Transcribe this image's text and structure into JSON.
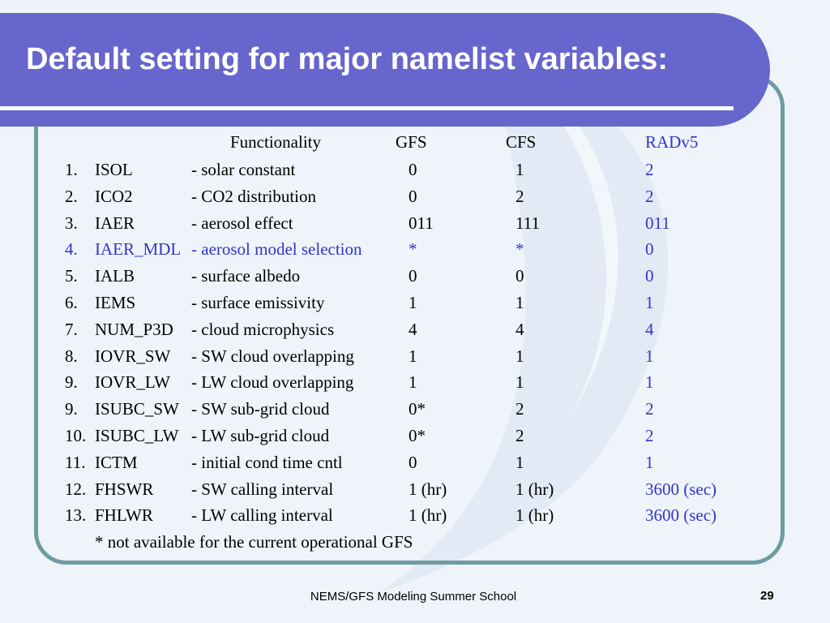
{
  "slide": {
    "title": "Default setting for major namelist variables:",
    "footer": "NEMS/GFS Modeling Summer School",
    "page_number": "29"
  },
  "colors": {
    "title_bg": "#6666cc",
    "frame": "#6e9ca0",
    "highlight": "#3333cc"
  },
  "table": {
    "headers": {
      "functionality": "Functionality",
      "gfs": "GFS",
      "cfs": "CFS",
      "radv5": "RADv5"
    },
    "rows": [
      {
        "num": "1.",
        "var": "ISOL",
        "desc": "- solar constant",
        "gfs": "0",
        "cfs": "1",
        "rad": "2",
        "highlight": false
      },
      {
        "num": "2.",
        "var": "ICO2",
        "desc": "- CO2 distribution",
        "gfs": "0",
        "cfs": "2",
        "rad": "2",
        "highlight": false
      },
      {
        "num": "3.",
        "var": "IAER",
        "desc": "- aerosol effect",
        "gfs": "011",
        "cfs": "111",
        "rad": "011",
        "highlight": false
      },
      {
        "num": "4.",
        "var": "IAER_MDL",
        "desc": "- aerosol model selection",
        "gfs": "*",
        "cfs": "*",
        "rad": "0",
        "highlight": true
      },
      {
        "num": "5.",
        "var": "IALB",
        "desc": "- surface albedo",
        "gfs": "0",
        "cfs": "0",
        "rad": "0",
        "highlight": false
      },
      {
        "num": "6.",
        "var": "IEMS",
        "desc": "- surface emissivity",
        "gfs": "1",
        "cfs": "1",
        "rad": "1",
        "highlight": false
      },
      {
        "num": "7.",
        "var": "NUM_P3D",
        "desc": "- cloud microphysics",
        "gfs": "4",
        "cfs": "4",
        "rad": "4",
        "highlight": false
      },
      {
        "num": "8.",
        "var": "IOVR_SW",
        "desc": "- SW cloud overlapping",
        "gfs": "1",
        "cfs": "1",
        "rad": "1",
        "highlight": false
      },
      {
        "num": "9.",
        "var": "IOVR_LW",
        "desc": "- LW cloud overlapping",
        "gfs": "1",
        "cfs": "1",
        "rad": "1",
        "highlight": false
      },
      {
        "num": "9.",
        "var": "ISUBC_SW",
        "desc": "- SW sub-grid cloud",
        "gfs": "0*",
        "cfs": "2",
        "rad": "2",
        "highlight": false
      },
      {
        "num": "10.",
        "var": "ISUBC_LW",
        "desc": "- LW sub-grid cloud",
        "gfs": "0*",
        "cfs": "2",
        "rad": "2",
        "highlight": false
      },
      {
        "num": "11.",
        "var": "ICTM",
        "desc": "- initial cond time cntl",
        "gfs": "0",
        "cfs": "1",
        "rad": "1",
        "highlight": false
      },
      {
        "num": "12.",
        "var": "FHSWR",
        "desc": "- SW calling interval",
        "gfs": "1 (hr)",
        "cfs": "1 (hr)",
        "rad": "3600 (sec)",
        "highlight": false
      },
      {
        "num": "13.",
        "var": "FHLWR",
        "desc": "- LW calling interval",
        "gfs": "1 (hr)",
        "cfs": "1 (hr)",
        "rad": "3600 (sec)",
        "highlight": false
      }
    ],
    "footnote": "* not available for the current operational GFS"
  }
}
